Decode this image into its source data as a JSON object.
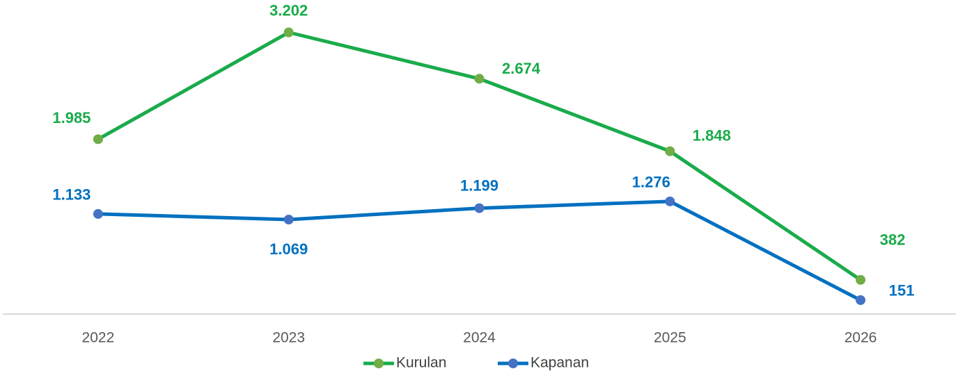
{
  "chart_data": {
    "type": "line",
    "categories": [
      "2022",
      "2023",
      "2024",
      "2025",
      "2026"
    ],
    "series": [
      {
        "name": "Kurulan",
        "color": "#1aab4b",
        "marker_color": "#70ad47",
        "values": [
          1985,
          3202,
          2674,
          1848,
          382
        ],
        "value_labels": [
          "1.985",
          "3.202",
          "2.674",
          "1.848",
          "382"
        ]
      },
      {
        "name": "Kapanan",
        "color": "#0070c0",
        "marker_color": "#4472c4",
        "values": [
          1133,
          1069,
          1199,
          1276,
          151
        ],
        "value_labels": [
          "1.133",
          "1.069",
          "1.199",
          "1.276",
          "151"
        ]
      }
    ],
    "ylim": [
      0,
      3500
    ],
    "legend": "bottom"
  }
}
